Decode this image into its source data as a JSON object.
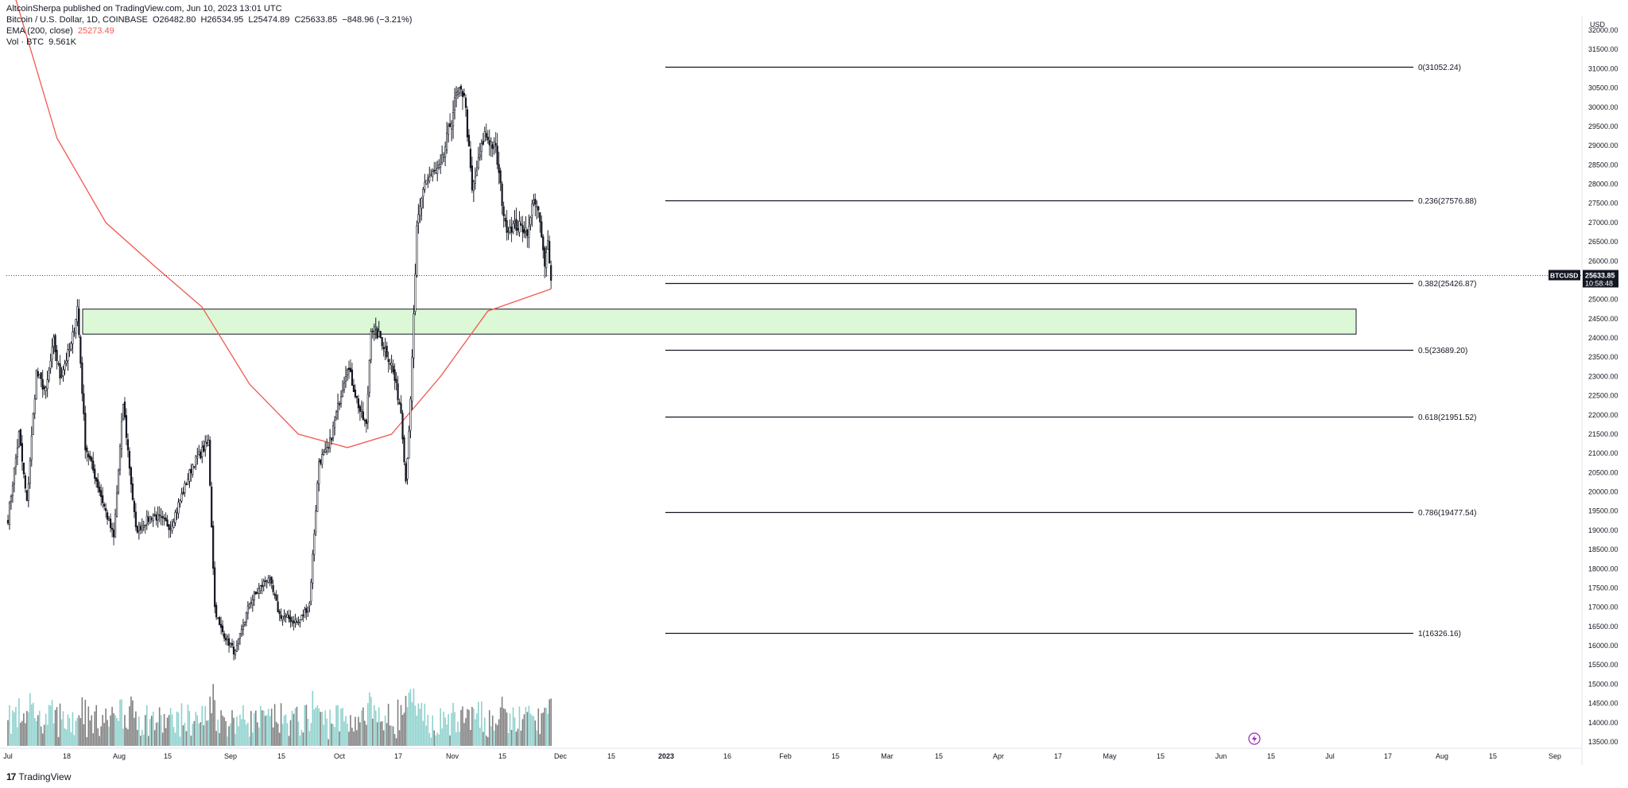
{
  "header": {
    "published": "AltcoinSherpa published on TradingView.com, Jun 10, 2023 13:01 UTC",
    "symbol_line": "Bitcoin / U.S. Dollar, 1D, COINBASE",
    "ohlc": [
      {
        "k": "O",
        "v": "26482.80"
      },
      {
        "k": "H",
        "v": "26534.95"
      },
      {
        "k": "L",
        "v": "25474.89"
      },
      {
        "k": "C",
        "v": "25633.85"
      }
    ],
    "change": "−848.96 (−3.21%)",
    "ema_label": "EMA (200, close)",
    "ema_value": "25273.49",
    "vol_label": "Vol · BTC",
    "vol_value": "9.561K"
  },
  "footer": {
    "logo": "17",
    "brand": "TradingView"
  },
  "colors": {
    "up": "#131722",
    "down": "#808080",
    "vol_up": "#8ed1cd",
    "vol_down": "#808080",
    "ema": "#f2584f",
    "zone_fill": "#dcf8d6",
    "price_tag": "#131722",
    "lightning": "#9c27b0"
  },
  "chart_data": {
    "type": "candlestick",
    "title": "",
    "currency": "USD",
    "last_price": "25633.85",
    "countdown": "10:58:48",
    "ticker_tag": "BTCUSD",
    "y_ticks": [
      13500,
      14000,
      14500,
      15000,
      15500,
      16000,
      16500,
      17000,
      17500,
      18000,
      18500,
      19000,
      19500,
      20000,
      20500,
      21000,
      21500,
      22000,
      22500,
      23000,
      23500,
      24000,
      24500,
      25000,
      25500,
      26000,
      26500,
      27000,
      27500,
      28000,
      28500,
      29000,
      29500,
      30000,
      30500,
      31000,
      31500,
      32000
    ],
    "y_range": [
      13250,
      32300
    ],
    "x_labels": [
      "Jul",
      "18",
      "Aug",
      "15",
      "Sep",
      "15",
      "Oct",
      "17",
      "Nov",
      "15",
      "Dec",
      "15",
      "2023",
      "16",
      "Feb",
      "15",
      "Mar",
      "15",
      "Apr",
      "17",
      "May",
      "15",
      "Jun",
      "15",
      "Jul",
      "17",
      "Aug",
      "15",
      "Sep"
    ],
    "fib_levels": [
      {
        "label": "0(31052.24)",
        "value": 31052.24
      },
      {
        "label": "0.236(27576.88)",
        "value": 27576.88
      },
      {
        "label": "0.382(25426.87)",
        "value": 25426.87
      },
      {
        "label": "0.5(23689.20)",
        "value": 23689.2
      },
      {
        "label": "0.618(21951.52)",
        "value": 21951.52
      },
      {
        "label": "0.786(19477.54)",
        "value": 19477.54
      },
      {
        "label": "1(16326.16)",
        "value": 16326.16
      }
    ],
    "zone": {
      "low": 24100,
      "high": 24750
    },
    "ema_points": [
      [
        "2022-07-06",
        32800
      ],
      [
        "2022-08-01",
        29200
      ],
      [
        "2022-09-01",
        27000
      ],
      [
        "2022-10-01",
        25900
      ],
      [
        "2022-11-01",
        24800
      ],
      [
        "2022-12-01",
        22800
      ],
      [
        "2023-01-01",
        21500
      ],
      [
        "2023-02-01",
        21150
      ],
      [
        "2023-03-01",
        21500
      ],
      [
        "2023-04-01",
        23000
      ],
      [
        "2023-05-01",
        24700
      ],
      [
        "2023-06-10",
        25273
      ]
    ],
    "price_anchors": [
      [
        "2022-07-01",
        19300
      ],
      [
        "2022-07-08",
        21500
      ],
      [
        "2022-07-13",
        19700
      ],
      [
        "2022-07-19",
        23100
      ],
      [
        "2022-07-25",
        22600
      ],
      [
        "2022-07-30",
        23900
      ],
      [
        "2022-08-03",
        23000
      ],
      [
        "2022-08-10",
        23800
      ],
      [
        "2022-08-14",
        24800
      ],
      [
        "2022-08-19",
        21200
      ],
      [
        "2022-08-26",
        20300
      ],
      [
        "2022-09-06",
        18800
      ],
      [
        "2022-09-12",
        22300
      ],
      [
        "2022-09-20",
        19000
      ],
      [
        "2022-10-01",
        19400
      ],
      [
        "2022-10-12",
        19100
      ],
      [
        "2022-10-26",
        20700
      ],
      [
        "2022-11-05",
        21300
      ],
      [
        "2022-11-09",
        17000
      ],
      [
        "2022-11-12",
        16500
      ],
      [
        "2022-11-22",
        15800
      ],
      [
        "2022-12-01",
        17100
      ],
      [
        "2022-12-13",
        17800
      ],
      [
        "2022-12-20",
        16800
      ],
      [
        "2023-01-01",
        16600
      ],
      [
        "2023-01-08",
        17100
      ],
      [
        "2023-01-14",
        20800
      ],
      [
        "2023-01-20",
        21100
      ],
      [
        "2023-02-01",
        23300
      ],
      [
        "2023-02-09",
        22100
      ],
      [
        "2023-02-13",
        21700
      ],
      [
        "2023-02-16",
        24300
      ],
      [
        "2023-02-22",
        24000
      ],
      [
        "2023-03-01",
        23300
      ],
      [
        "2023-03-07",
        22100
      ],
      [
        "2023-03-10",
        20300
      ],
      [
        "2023-03-13",
        22300
      ],
      [
        "2023-03-17",
        26800
      ],
      [
        "2023-03-22",
        28100
      ],
      [
        "2023-04-01",
        28400
      ],
      [
        "2023-04-11",
        30300
      ],
      [
        "2023-04-16",
        30400
      ],
      [
        "2023-04-21",
        27800
      ],
      [
        "2023-04-29",
        29300
      ],
      [
        "2023-05-06",
        28900
      ],
      [
        "2023-05-12",
        26900
      ],
      [
        "2023-05-20",
        26900
      ],
      [
        "2023-05-27",
        26800
      ],
      [
        "2023-05-30",
        27700
      ],
      [
        "2023-06-03",
        27000
      ],
      [
        "2023-06-06",
        25800
      ],
      [
        "2023-06-08",
        26500
      ],
      [
        "2023-06-10",
        25634
      ]
    ]
  }
}
